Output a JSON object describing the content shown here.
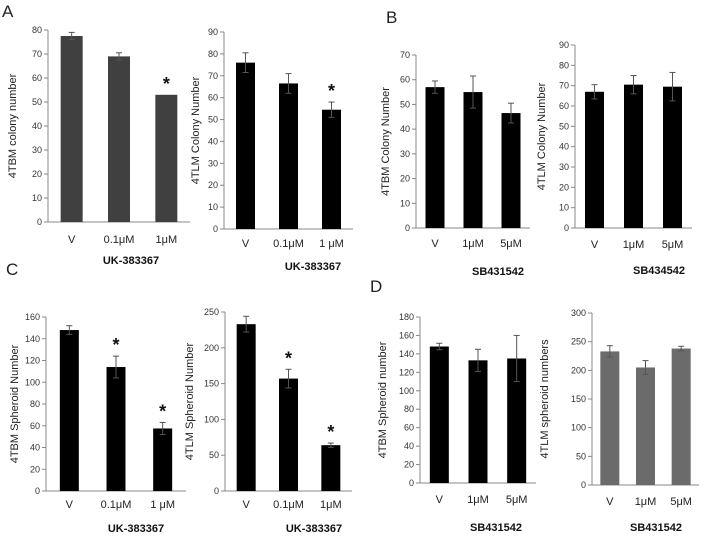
{
  "panel_labels": [
    "A",
    "B",
    "C",
    "D"
  ],
  "chart_data": [
    {
      "type": "bar",
      "panel": "A",
      "title": "",
      "ylabel": "4TBM colony number",
      "xlabel": "UK-383367",
      "categories": [
        "V",
        "0.1μM",
        "1μM"
      ],
      "values": [
        77.5,
        69,
        53
      ],
      "errors": [
        1.5,
        1.5,
        0
      ],
      "significance": [
        "",
        "",
        "*"
      ],
      "ylim": [
        0,
        80
      ],
      "yticks": [
        0,
        10,
        20,
        30,
        40,
        50,
        60,
        70,
        80
      ],
      "bar_color": "#404040"
    },
    {
      "type": "bar",
      "panel": "A",
      "title": "",
      "ylabel": "4TLM Colony Number",
      "xlabel": "UK-383367",
      "categories": [
        "V",
        "0.1μM",
        "1 μM"
      ],
      "values": [
        76,
        66.5,
        54.5
      ],
      "errors": [
        4.5,
        4.5,
        3.5
      ],
      "significance": [
        "",
        "",
        "*"
      ],
      "ylim": [
        0,
        90
      ],
      "yticks": [
        0,
        10,
        20,
        30,
        40,
        50,
        60,
        70,
        80,
        90
      ],
      "bar_color": "#000000"
    },
    {
      "type": "bar",
      "panel": "B",
      "title": "",
      "ylabel": "4TBM Colony Number",
      "xlabel": "SB431542",
      "categories": [
        "V",
        "1μM",
        "5μM"
      ],
      "values": [
        57,
        55,
        46.5
      ],
      "errors": [
        2.5,
        6.5,
        4
      ],
      "significance": [
        "",
        "",
        ""
      ],
      "ylim": [
        0,
        70
      ],
      "yticks": [
        0,
        10,
        20,
        30,
        40,
        50,
        60,
        70
      ],
      "bar_color": "#000000"
    },
    {
      "type": "bar",
      "panel": "B",
      "title": "",
      "ylabel": "4TLM Colony Number",
      "xlabel": "SB434542",
      "categories": [
        "V",
        "1μM",
        "5μM"
      ],
      "values": [
        67,
        70.5,
        69.5
      ],
      "errors": [
        3.5,
        4.5,
        7
      ],
      "significance": [
        "",
        "",
        ""
      ],
      "ylim": [
        0,
        90
      ],
      "yticks": [
        0,
        10,
        20,
        30,
        40,
        50,
        60,
        70,
        80,
        90
      ],
      "bar_color": "#000000"
    },
    {
      "type": "bar",
      "panel": "C",
      "title": "",
      "ylabel": "4TBM Spheroid Number",
      "xlabel": "UK-383367",
      "categories": [
        "V",
        "0.1μM",
        "1 μM"
      ],
      "values": [
        148,
        114,
        57.5
      ],
      "errors": [
        4,
        10,
        5.5
      ],
      "significance": [
        "",
        "*",
        "*"
      ],
      "ylim": [
        0,
        160
      ],
      "yticks": [
        0,
        20,
        40,
        60,
        80,
        100,
        120,
        140,
        160
      ],
      "bar_color": "#000000"
    },
    {
      "type": "bar",
      "panel": "C",
      "title": "",
      "ylabel": "4TLM Spheroid Number",
      "xlabel": "UK-383367",
      "categories": [
        "V",
        "0.1μM",
        "1μM"
      ],
      "values": [
        233,
        157,
        64
      ],
      "errors": [
        11,
        13,
        3
      ],
      "significance": [
        "",
        "*",
        "*"
      ],
      "ylim": [
        0,
        250
      ],
      "yticks": [
        0,
        50,
        100,
        150,
        200,
        250
      ],
      "bar_color": "#000000"
    },
    {
      "type": "bar",
      "panel": "D",
      "title": "",
      "ylabel": "4TBM Spheroid  number",
      "xlabel": "SB431542",
      "categories": [
        "V",
        "1μM",
        "5μM"
      ],
      "values": [
        148,
        133,
        135
      ],
      "errors": [
        3.5,
        12,
        25
      ],
      "significance": [
        "",
        "",
        ""
      ],
      "ylim": [
        0,
        180
      ],
      "yticks": [
        0,
        20,
        40,
        60,
        80,
        100,
        120,
        140,
        160,
        180
      ],
      "bar_color": "#000000"
    },
    {
      "type": "bar",
      "panel": "D",
      "title": "",
      "ylabel": "4TLM spheroid numbers",
      "xlabel": "SB431542",
      "categories": [
        "V",
        "1μM",
        "5μM"
      ],
      "values": [
        233,
        205,
        238
      ],
      "errors": [
        10,
        12,
        4
      ],
      "significance": [
        "",
        "",
        ""
      ],
      "ylim": [
        0,
        300
      ],
      "yticks": [
        0,
        50,
        100,
        150,
        200,
        250,
        300
      ],
      "bar_color": "#6b6b6b"
    }
  ]
}
